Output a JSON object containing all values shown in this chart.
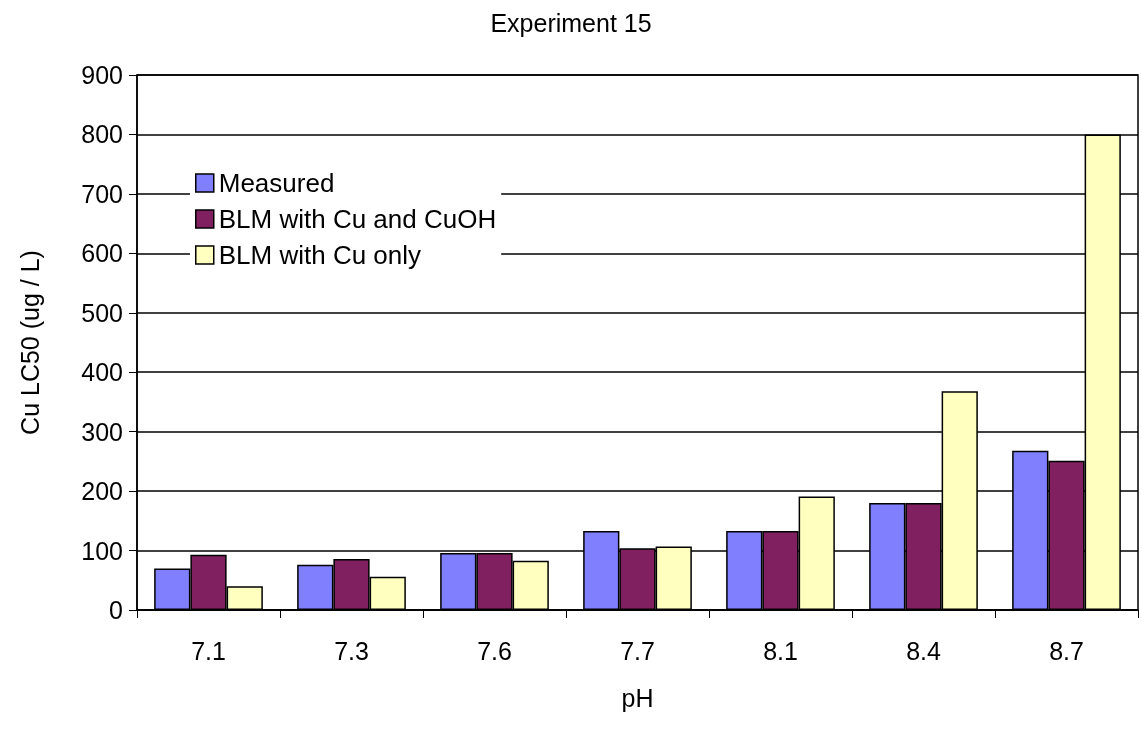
{
  "chart_data": {
    "type": "bar",
    "title": "Experiment 15",
    "xlabel": "pH",
    "ylabel": "Cu LC50 (ug / L)",
    "categories": [
      "7.1",
      "7.3",
      "7.6",
      "7.7",
      "8.1",
      "8.4",
      "8.7"
    ],
    "series": [
      {
        "name": "Measured",
        "color": "#8080ff",
        "values": [
          70,
          76,
          96,
          133,
          133,
          180,
          268
        ]
      },
      {
        "name": "BLM with Cu and CuOH",
        "color": "#802060",
        "values": [
          93,
          86,
          96,
          104,
          133,
          180,
          251
        ]
      },
      {
        "name": "BLM with Cu only",
        "color": "#ffffc0",
        "values": [
          40,
          56,
          83,
          107,
          191,
          368,
          800
        ]
      }
    ],
    "ylim": [
      0,
      900
    ],
    "yticks": [
      0,
      100,
      200,
      300,
      400,
      500,
      600,
      700,
      800,
      900
    ],
    "grid": "y",
    "legend": "top left"
  }
}
